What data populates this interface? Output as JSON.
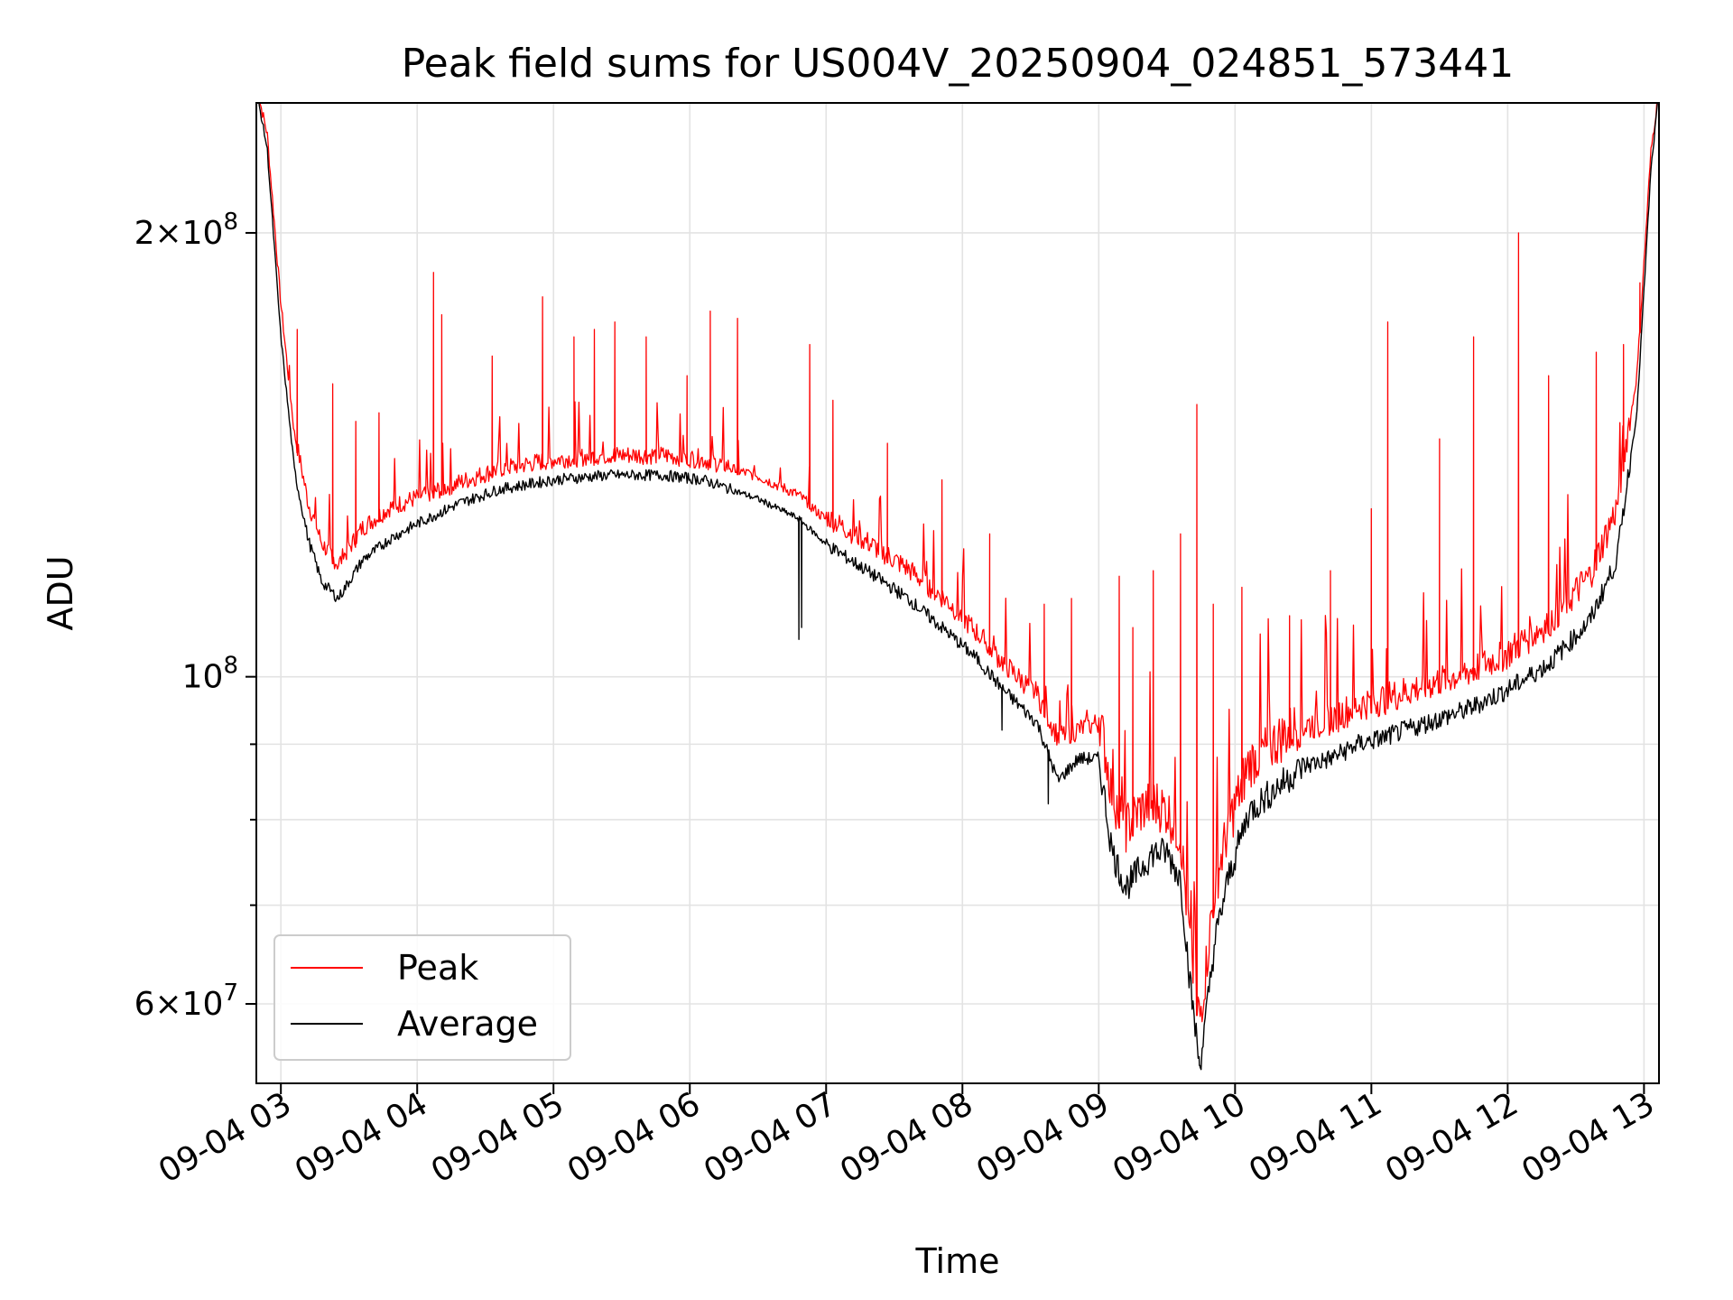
{
  "chart_data": {
    "type": "line",
    "title": "Peak field sums for US004V_20250904_024851_573441",
    "xlabel": "Time",
    "ylabel": "ADU",
    "y_scale": "log",
    "ylim": [
      53000000,
      245000000
    ],
    "x_unit": "hours (2025-09-04)",
    "xlim": [
      2.82,
      13.11
    ],
    "grid": true,
    "legend_position": "lower-left",
    "x_ticks": [
      {
        "value": 3,
        "label": "09-04 03"
      },
      {
        "value": 4,
        "label": "09-04 04"
      },
      {
        "value": 5,
        "label": "09-04 05"
      },
      {
        "value": 6,
        "label": "09-04 06"
      },
      {
        "value": 7,
        "label": "09-04 07"
      },
      {
        "value": 8,
        "label": "09-04 08"
      },
      {
        "value": 9,
        "label": "09-04 09"
      },
      {
        "value": 10,
        "label": "09-04 10"
      },
      {
        "value": 11,
        "label": "09-04 11"
      },
      {
        "value": 12,
        "label": "09-04 12"
      },
      {
        "value": 13,
        "label": "09-04 13"
      }
    ],
    "y_major_ticks": [
      {
        "value": 60000000,
        "mantissa": "6",
        "exponent": "7"
      },
      {
        "value": 100000000,
        "mantissa": "",
        "exponent": "8"
      },
      {
        "value": 200000000,
        "mantissa": "2",
        "exponent": "8"
      }
    ],
    "y_minor_ticks": [
      70000000,
      80000000,
      90000000
    ],
    "series": [
      {
        "name": "Peak",
        "color": "#ff0000",
        "x": [
          2.82,
          2.9,
          3.0,
          3.1,
          3.2,
          3.3,
          3.42,
          3.6,
          3.8,
          4.0,
          4.3,
          4.6,
          5.0,
          5.4,
          5.8,
          6.1,
          6.5,
          6.8,
          7.0,
          7.3,
          7.6,
          7.9,
          8.1,
          8.3,
          8.55,
          8.7,
          8.85,
          9.0,
          9.1,
          9.2,
          9.3,
          9.4,
          9.5,
          9.6,
          9.67,
          9.74,
          9.78,
          9.85,
          9.95,
          10.1,
          10.3,
          10.5,
          10.7,
          10.9,
          11.1,
          11.4,
          11.7,
          12.0,
          12.3,
          12.6,
          12.8,
          12.95,
          13.05,
          13.11
        ],
        "values": [
          250000000,
          232000000,
          178000000,
          145000000,
          130000000,
          122000000,
          118000000,
          125000000,
          129000000,
          131000000,
          134000000,
          137000000,
          139000000,
          140000000,
          140000000,
          139000000,
          136000000,
          132000000,
          127000000,
          122000000,
          117000000,
          111000000,
          106000000,
          101000000,
          96000000,
          90000000,
          91000000,
          92000000,
          81000000,
          77000000,
          79000000,
          80000000,
          79000000,
          76000000,
          64000000,
          57000000,
          61000000,
          70000000,
          77000000,
          85000000,
          88000000,
          91000000,
          92000000,
          94000000,
          95000000,
          97000000,
          99000000,
          102000000,
          107000000,
          115000000,
          128000000,
          160000000,
          225000000,
          250000000
        ],
        "spikes": [
          [
            3.12,
            172000000
          ],
          [
            3.38,
            158000000
          ],
          [
            3.55,
            149000000
          ],
          [
            3.72,
            151000000
          ],
          [
            4.12,
            188000000
          ],
          [
            4.18,
            176000000
          ],
          [
            4.55,
            165000000
          ],
          [
            4.92,
            181000000
          ],
          [
            5.15,
            170000000
          ],
          [
            5.3,
            172000000
          ],
          [
            5.45,
            174000000
          ],
          [
            5.68,
            170000000
          ],
          [
            5.98,
            160000000
          ],
          [
            6.15,
            177000000
          ],
          [
            6.35,
            175000000
          ],
          [
            6.88,
            168000000
          ],
          [
            7.05,
            154000000
          ],
          [
            7.45,
            144000000
          ],
          [
            7.85,
            136000000
          ],
          [
            8.2,
            125000000
          ],
          [
            8.6,
            112000000
          ],
          [
            8.8,
            113000000
          ],
          [
            9.15,
            117000000
          ],
          [
            9.25,
            108000000
          ],
          [
            9.4,
            118000000
          ],
          [
            9.6,
            125000000
          ],
          [
            9.72,
            153000000
          ],
          [
            9.84,
            112000000
          ],
          [
            10.05,
            115000000
          ],
          [
            10.4,
            110000000
          ],
          [
            10.7,
            118000000
          ],
          [
            11.0,
            130000000
          ],
          [
            11.12,
            174000000
          ],
          [
            11.5,
            145000000
          ],
          [
            11.75,
            170000000
          ],
          [
            12.08,
            200000000
          ],
          [
            12.3,
            160000000
          ],
          [
            12.65,
            166000000
          ],
          [
            12.85,
            168000000
          ],
          [
            12.97,
            185000000
          ]
        ]
      },
      {
        "name": "Average",
        "color": "#000000",
        "x": [
          2.82,
          2.9,
          3.0,
          3.1,
          3.2,
          3.3,
          3.42,
          3.6,
          3.8,
          4.0,
          4.3,
          4.6,
          5.0,
          5.4,
          5.8,
          6.1,
          6.5,
          6.8,
          7.0,
          7.3,
          7.6,
          7.9,
          8.1,
          8.3,
          8.55,
          8.7,
          8.85,
          9.0,
          9.1,
          9.2,
          9.3,
          9.4,
          9.5,
          9.6,
          9.67,
          9.74,
          9.78,
          9.85,
          9.95,
          10.1,
          10.3,
          10.5,
          10.7,
          10.9,
          11.1,
          11.4,
          11.7,
          12.0,
          12.3,
          12.6,
          12.8,
          12.95,
          13.05,
          13.11
        ],
        "values": [
          250000000,
          228000000,
          170000000,
          138000000,
          124000000,
          116000000,
          113000000,
          120000000,
          124000000,
          127000000,
          131000000,
          134000000,
          136000000,
          137000000,
          137000000,
          136000000,
          132000000,
          128000000,
          123000000,
          118000000,
          113000000,
          107000000,
          103000000,
          98000000,
          93000000,
          85000000,
          88000000,
          88000000,
          76000000,
          72000000,
          74000000,
          76000000,
          76000000,
          73000000,
          62000000,
          54500000,
          58000000,
          66000000,
          73000000,
          81000000,
          84000000,
          87000000,
          88000000,
          90000000,
          91000000,
          93000000,
          95000000,
          98000000,
          102000000,
          109000000,
          120000000,
          152000000,
          220000000,
          250000000
        ],
        "dips": [
          [
            6.8,
            106000000
          ],
          [
            6.82,
            108000000
          ],
          [
            8.29,
            92000000
          ],
          [
            8.63,
            82000000
          ],
          [
            9.24,
            72000000
          ],
          [
            9.74,
            54500000
          ]
        ]
      }
    ]
  }
}
